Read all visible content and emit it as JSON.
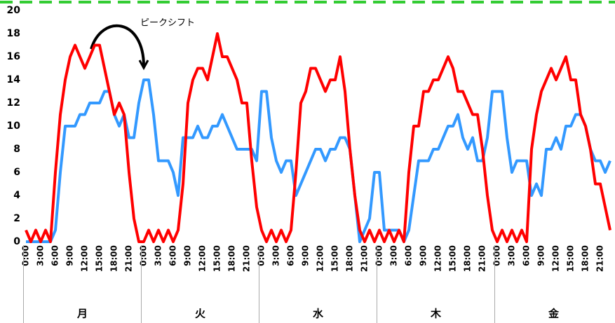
{
  "chart_data": {
    "type": "line",
    "annotation": "ピークシフト",
    "categories": [
      "0:00",
      null,
      null,
      "3:00",
      null,
      null,
      "6:00",
      null,
      null,
      "9:00",
      null,
      null,
      "12:00",
      null,
      null,
      "15:00",
      null,
      null,
      "18:00",
      null,
      null,
      "21:00",
      null,
      null,
      "0:00",
      null,
      null,
      "3:00",
      null,
      null,
      "6:00",
      null,
      null,
      "9:00",
      null,
      null,
      "12:00",
      null,
      null,
      "15:00",
      null,
      null,
      "18:00",
      null,
      null,
      "21:00",
      null,
      null,
      "0:00",
      null,
      null,
      "3:00",
      null,
      null,
      "6:00",
      null,
      null,
      "9:00",
      null,
      null,
      "12:00",
      null,
      null,
      "15:00",
      null,
      null,
      "18:00",
      null,
      null,
      "21:00",
      null,
      null,
      "0:00",
      null,
      null,
      "3:00",
      null,
      null,
      "6:00",
      null,
      null,
      "9:00",
      null,
      null,
      "12:00",
      null,
      null,
      "15:00",
      null,
      null,
      "18:00",
      null,
      null,
      "21:00",
      null,
      null,
      "0:00",
      null,
      null,
      "3:00",
      null,
      null,
      "6:00",
      null,
      null,
      "9:00",
      null,
      null,
      "12:00",
      null,
      null,
      "15:00",
      null,
      null,
      "18:00",
      null,
      null,
      "21:00",
      null,
      null
    ],
    "groups": [
      "月",
      "火",
      "水",
      "木",
      "金"
    ],
    "series": [
      {
        "color": "#3399ff",
        "values": [
          0,
          0,
          0,
          0,
          0,
          0,
          1,
          6,
          10,
          10,
          10,
          11,
          11,
          12,
          12,
          12,
          13,
          13,
          11,
          10,
          11,
          9,
          9,
          12,
          14,
          14,
          11,
          7,
          7,
          7,
          6,
          4,
          9,
          9,
          9,
          10,
          9,
          9,
          10,
          10,
          11,
          10,
          9,
          8,
          8,
          8,
          8,
          7,
          13,
          13,
          9,
          7,
          6,
          7,
          7,
          4,
          5,
          6,
          7,
          8,
          8,
          7,
          8,
          8,
          9,
          9,
          8,
          4,
          0,
          1,
          2,
          6,
          6,
          1,
          1,
          1,
          1,
          0,
          1,
          4,
          7,
          7,
          7,
          8,
          8,
          9,
          10,
          10,
          11,
          9,
          8,
          9,
          7,
          7,
          9,
          13,
          13,
          13,
          9,
          6,
          7,
          7,
          7,
          4,
          5,
          4,
          8,
          8,
          9,
          8,
          10,
          10,
          11,
          11,
          10,
          8,
          7,
          7,
          6,
          7
        ]
      },
      {
        "color": "#ff0000",
        "values": [
          1,
          0,
          1,
          0,
          1,
          0,
          6,
          11,
          14,
          16,
          17,
          16,
          15,
          16,
          17,
          17,
          15,
          13,
          11,
          12,
          11,
          6,
          2,
          0,
          0,
          1,
          0,
          1,
          0,
          1,
          0,
          1,
          5,
          12,
          14,
          15,
          15,
          14,
          16,
          18,
          16,
          16,
          15,
          14,
          12,
          12,
          7,
          3,
          1,
          0,
          1,
          0,
          1,
          0,
          1,
          6,
          12,
          13,
          15,
          15,
          14,
          13,
          14,
          14,
          16,
          13,
          8,
          4,
          1,
          0,
          1,
          0,
          1,
          0,
          1,
          0,
          1,
          0,
          6,
          10,
          10,
          13,
          13,
          14,
          14,
          15,
          16,
          15,
          13,
          13,
          12,
          11,
          11,
          8,
          4,
          1,
          0,
          1,
          0,
          1,
          0,
          1,
          0,
          8,
          11,
          13,
          14,
          15,
          14,
          15,
          16,
          14,
          14,
          11,
          10,
          8,
          5,
          5,
          3,
          1
        ]
      }
    ],
    "ylim": [
      0,
      20
    ],
    "yticks": [
      0,
      2,
      4,
      6,
      8,
      10,
      12,
      14,
      16,
      18,
      20
    ],
    "grid": false
  }
}
